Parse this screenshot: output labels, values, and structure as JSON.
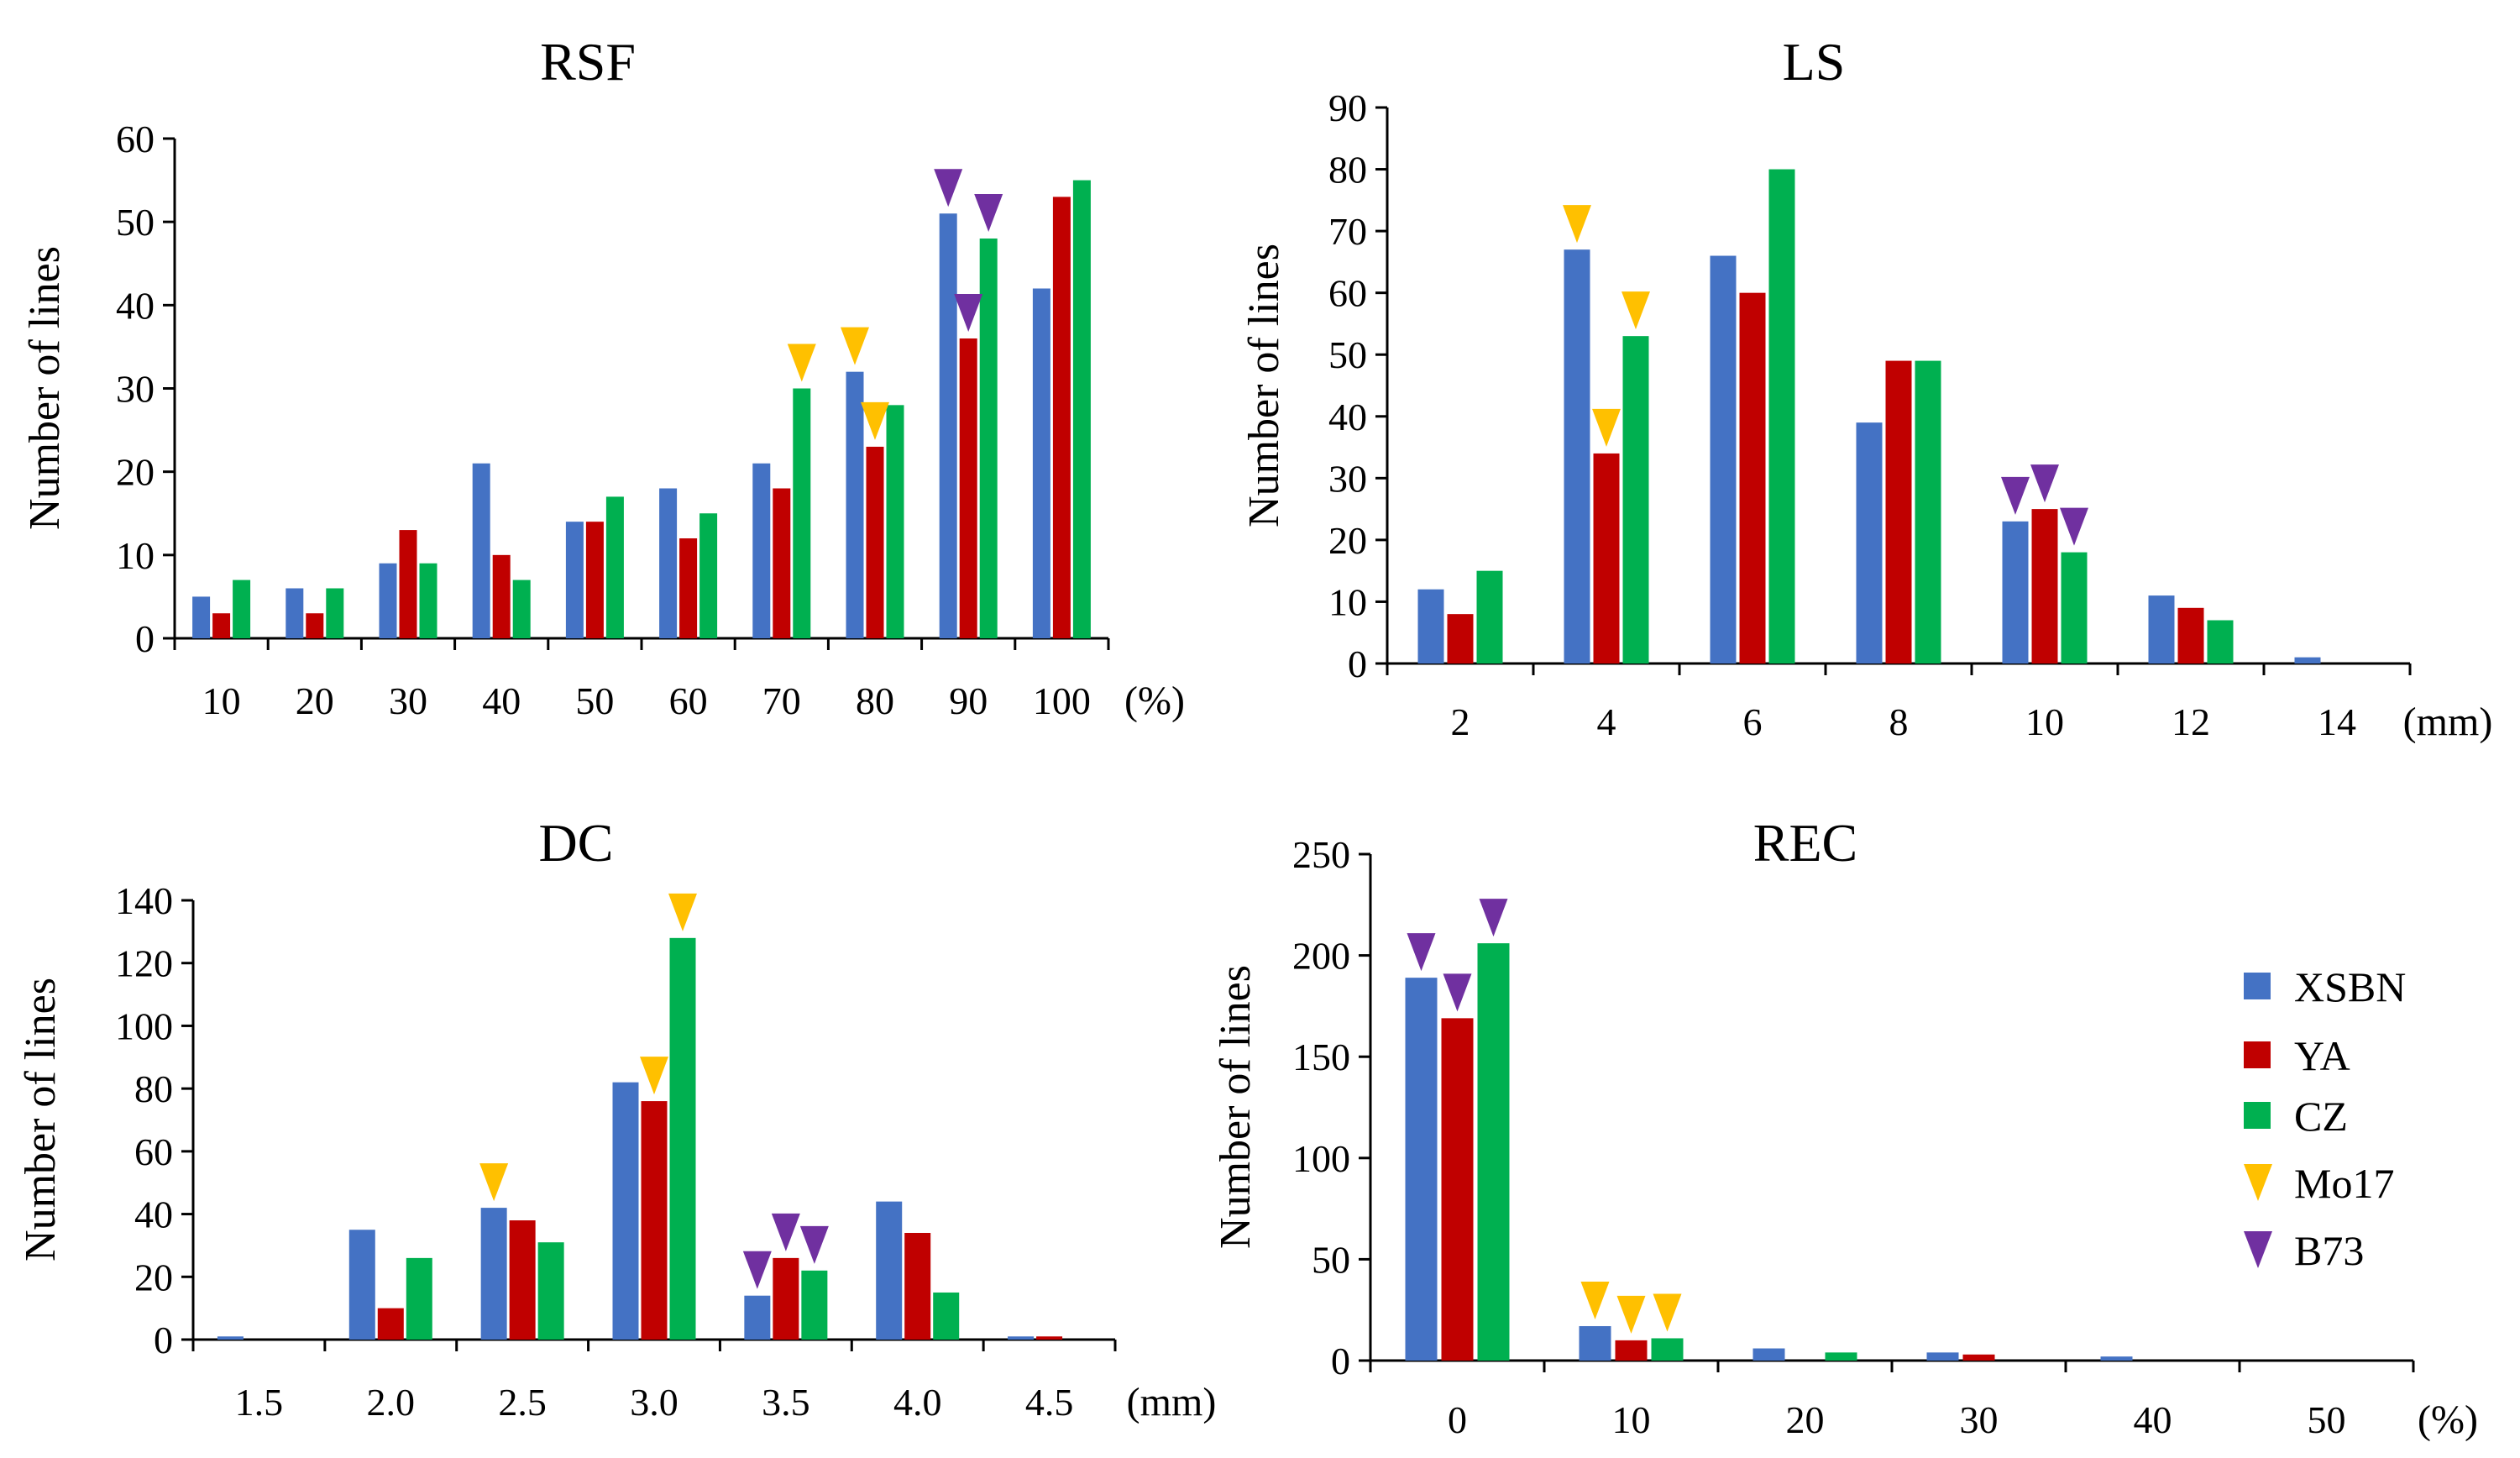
{
  "colors": {
    "XSBN": "#4472c4",
    "YA": "#c00000",
    "CZ": "#00b050",
    "Mo17": "#ffc000",
    "B73": "#7030a0"
  },
  "legend": [
    {
      "label": "XSBN",
      "color": "#4472c4",
      "shape": "square"
    },
    {
      "label": "YA",
      "color": "#c00000",
      "shape": "square"
    },
    {
      "label": "CZ",
      "color": "#00b050",
      "shape": "square"
    },
    {
      "label": "Mo17",
      "color": "#ffc000",
      "shape": "triangle"
    },
    {
      "label": "B73",
      "color": "#7030a0",
      "shape": "triangle"
    }
  ],
  "chart_data": [
    {
      "type": "bar",
      "title": "RSF",
      "ylabel": "Number  of lines",
      "xunit": "(%)",
      "ylim": [
        0,
        60
      ],
      "yticks": [
        0,
        10,
        20,
        30,
        40,
        50,
        60
      ],
      "categories": [
        "10",
        "20",
        "30",
        "40",
        "50",
        "60",
        "70",
        "80",
        "90",
        "100"
      ],
      "series": [
        {
          "name": "XSBN",
          "values": [
            5,
            6,
            9,
            21,
            14,
            18,
            21,
            32,
            51,
            42
          ]
        },
        {
          "name": "YA",
          "values": [
            3,
            3,
            13,
            10,
            14,
            12,
            18,
            23,
            36,
            53
          ]
        },
        {
          "name": "CZ",
          "values": [
            7,
            6,
            9,
            7,
            17,
            15,
            30,
            28,
            48,
            55
          ]
        }
      ],
      "markers": [
        {
          "type": "Mo17",
          "category": "70",
          "series": "CZ"
        },
        {
          "type": "Mo17",
          "category": "80",
          "series": "XSBN"
        },
        {
          "type": "Mo17",
          "category": "80",
          "series": "YA"
        },
        {
          "type": "B73",
          "category": "90",
          "series": "XSBN"
        },
        {
          "type": "B73",
          "category": "90",
          "series": "YA"
        },
        {
          "type": "B73",
          "category": "90",
          "series": "CZ"
        }
      ]
    },
    {
      "type": "bar",
      "title": "LS",
      "ylabel": "Number of lines",
      "xunit": "(mm)",
      "ylim": [
        0,
        90
      ],
      "yticks": [
        0,
        10,
        20,
        30,
        40,
        50,
        60,
        70,
        80,
        90
      ],
      "categories": [
        "2",
        "4",
        "6",
        "8",
        "10",
        "12",
        "14"
      ],
      "series": [
        {
          "name": "XSBN",
          "values": [
            12,
            67,
            66,
            39,
            23,
            11,
            1
          ]
        },
        {
          "name": "YA",
          "values": [
            8,
            34,
            60,
            49,
            25,
            9,
            0
          ]
        },
        {
          "name": "CZ",
          "values": [
            15,
            53,
            80,
            49,
            18,
            7,
            0
          ]
        }
      ],
      "markers": [
        {
          "type": "Mo17",
          "category": "4",
          "series": "XSBN"
        },
        {
          "type": "Mo17",
          "category": "4",
          "series": "YA"
        },
        {
          "type": "Mo17",
          "category": "4",
          "series": "CZ"
        },
        {
          "type": "B73",
          "category": "10",
          "series": "XSBN"
        },
        {
          "type": "B73",
          "category": "10",
          "series": "YA"
        },
        {
          "type": "B73",
          "category": "10",
          "series": "CZ"
        }
      ]
    },
    {
      "type": "bar",
      "title": "DC",
      "ylabel": "Number of lines",
      "xunit": "(mm)",
      "ylim": [
        0,
        140
      ],
      "yticks": [
        0,
        20,
        40,
        60,
        80,
        100,
        120,
        140
      ],
      "categories": [
        "1.5",
        "2.0",
        "2.5",
        "3.0",
        "3.5",
        "4.0",
        "4.5"
      ],
      "series": [
        {
          "name": "XSBN",
          "values": [
            1,
            35,
            42,
            82,
            14,
            44,
            1
          ]
        },
        {
          "name": "YA",
          "values": [
            0,
            10,
            38,
            76,
            26,
            34,
            1
          ]
        },
        {
          "name": "CZ",
          "values": [
            0,
            26,
            31,
            128,
            22,
            15,
            0
          ]
        }
      ],
      "markers": [
        {
          "type": "Mo17",
          "category": "2.5",
          "series": "XSBN"
        },
        {
          "type": "Mo17",
          "category": "3.0",
          "series": "YA"
        },
        {
          "type": "Mo17",
          "category": "3.0",
          "series": "CZ"
        },
        {
          "type": "B73",
          "category": "3.5",
          "series": "XSBN"
        },
        {
          "type": "B73",
          "category": "3.5",
          "series": "YA"
        },
        {
          "type": "B73",
          "category": "3.5",
          "series": "CZ"
        }
      ]
    },
    {
      "type": "bar",
      "title": "REC",
      "ylabel": "Number of lines",
      "xunit": "(%)",
      "ylim": [
        0,
        250
      ],
      "yticks": [
        0,
        50,
        100,
        150,
        200,
        250
      ],
      "categories": [
        "0",
        "10",
        "20",
        "30",
        "40",
        "50"
      ],
      "series": [
        {
          "name": "XSBN",
          "values": [
            189,
            17,
            6,
            4,
            2,
            0
          ]
        },
        {
          "name": "YA",
          "values": [
            169,
            10,
            0,
            3,
            0,
            0
          ]
        },
        {
          "name": "CZ",
          "values": [
            206,
            11,
            4,
            0,
            0,
            0
          ]
        }
      ],
      "markers": [
        {
          "type": "B73",
          "category": "0",
          "series": "XSBN"
        },
        {
          "type": "B73",
          "category": "0",
          "series": "YA"
        },
        {
          "type": "B73",
          "category": "0",
          "series": "CZ"
        },
        {
          "type": "Mo17",
          "category": "10",
          "series": "XSBN"
        },
        {
          "type": "Mo17",
          "category": "10",
          "series": "YA"
        },
        {
          "type": "Mo17",
          "category": "10",
          "series": "CZ"
        }
      ]
    }
  ]
}
